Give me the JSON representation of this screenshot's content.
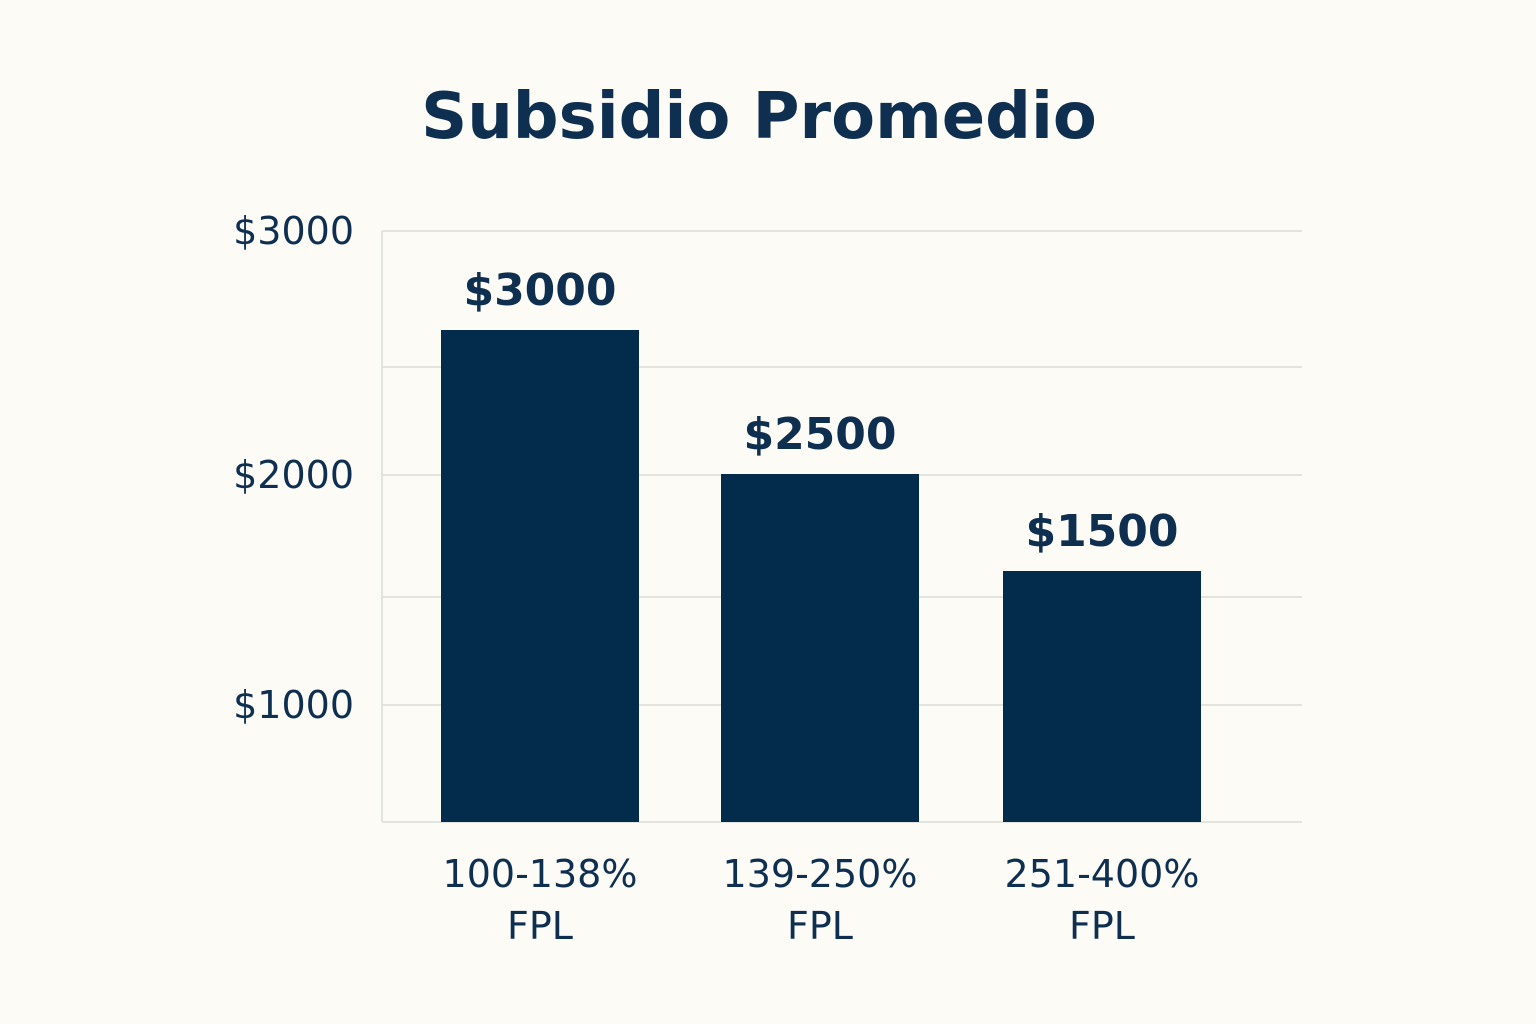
{
  "colors": {
    "background": "#fcfbf6",
    "bar": "#032b4c",
    "text": "#0e2f50",
    "grid": "#dcdcd6"
  },
  "chart_data": {
    "type": "bar",
    "title": "Subsidio Promedio",
    "xlabel": "",
    "ylabel": "",
    "categories": [
      [
        "100-138%",
        "FPL"
      ],
      [
        "139-250%",
        "FPL"
      ],
      [
        "251-400%",
        "FPL"
      ]
    ],
    "values": [
      3000,
      2500,
      1500
    ],
    "value_labels": [
      "$3000",
      "$2500",
      "$1500"
    ],
    "yticks": [
      {
        "value": 1000,
        "label": "$1000"
      },
      {
        "value": 2000,
        "label": "$2000"
      },
      {
        "value": 3000,
        "label": "$3000"
      }
    ],
    "grid": true,
    "legend": "none"
  }
}
